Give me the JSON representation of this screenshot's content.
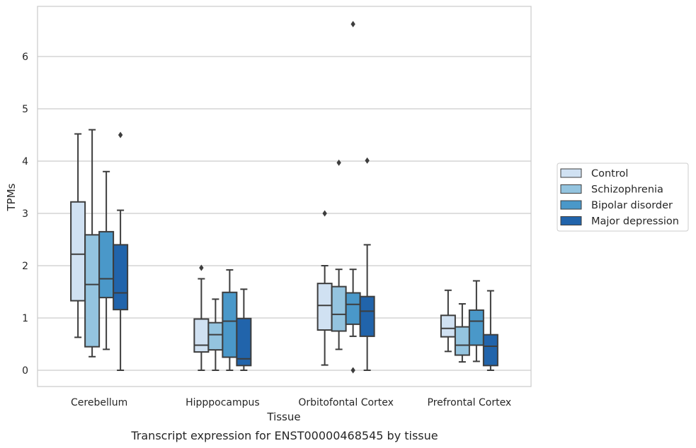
{
  "caption": "Transcript expression for ENST00000468545 by tissue",
  "chart_data": {
    "type": "box",
    "title": "",
    "xlabel": "Tissue",
    "ylabel": "TPMs",
    "ylim": [
      -0.32,
      7.0
    ],
    "yticks": [
      0,
      1,
      2,
      3,
      4,
      5,
      6
    ],
    "grid": true,
    "legend_position": "right",
    "categories": [
      "Cerebellum",
      "Hipppocampus",
      "Orbitofontal Cortex",
      "Prefrontal Cortex"
    ],
    "series": [
      {
        "name": "Control",
        "color": "#d0e1f2",
        "boxes": [
          {
            "whisker_low": 0.63,
            "q1": 1.33,
            "median": 2.22,
            "q3": 3.22,
            "whisker_high": 4.52,
            "outliers": []
          },
          {
            "whisker_low": 0.0,
            "q1": 0.35,
            "median": 0.48,
            "q3": 0.98,
            "whisker_high": 1.75,
            "outliers": [
              1.96
            ]
          },
          {
            "whisker_low": 0.1,
            "q1": 0.77,
            "median": 1.24,
            "q3": 1.66,
            "whisker_high": 2.0,
            "outliers": [
              3.0
            ]
          },
          {
            "whisker_low": 0.36,
            "q1": 0.64,
            "median": 0.8,
            "q3": 1.05,
            "whisker_high": 1.53,
            "outliers": []
          }
        ]
      },
      {
        "name": "Schizophrenia",
        "color": "#94c4df",
        "boxes": [
          {
            "whisker_low": 0.26,
            "q1": 0.45,
            "median": 1.64,
            "q3": 2.59,
            "whisker_high": 4.6,
            "outliers": []
          },
          {
            "whisker_low": 0.0,
            "q1": 0.39,
            "median": 0.68,
            "q3": 0.91,
            "whisker_high": 1.36,
            "outliers": []
          },
          {
            "whisker_low": 0.4,
            "q1": 0.75,
            "median": 1.07,
            "q3": 1.6,
            "whisker_high": 1.93,
            "outliers": [
              3.97
            ]
          },
          {
            "whisker_low": 0.16,
            "q1": 0.29,
            "median": 0.48,
            "q3": 0.83,
            "whisker_high": 1.27,
            "outliers": []
          }
        ]
      },
      {
        "name": "Bipolar disorder",
        "color": "#4a98c9",
        "boxes": [
          {
            "whisker_low": 0.4,
            "q1": 1.39,
            "median": 1.75,
            "q3": 2.65,
            "whisker_high": 3.8,
            "outliers": []
          },
          {
            "whisker_low": 0.0,
            "q1": 0.25,
            "median": 0.94,
            "q3": 1.49,
            "whisker_high": 1.92,
            "outliers": []
          },
          {
            "whisker_low": 0.65,
            "q1": 0.88,
            "median": 1.26,
            "q3": 1.48,
            "whisker_high": 1.93,
            "outliers": [
              0.0,
              6.62
            ]
          },
          {
            "whisker_low": 0.17,
            "q1": 0.48,
            "median": 0.94,
            "q3": 1.15,
            "whisker_high": 1.71,
            "outliers": []
          }
        ]
      },
      {
        "name": "Major depression",
        "color": "#2164ab",
        "boxes": [
          {
            "whisker_low": 0.0,
            "q1": 1.16,
            "median": 1.48,
            "q3": 2.4,
            "whisker_high": 3.06,
            "outliers": [
              4.5
            ]
          },
          {
            "whisker_low": 0.0,
            "q1": 0.09,
            "median": 0.22,
            "q3": 0.99,
            "whisker_high": 1.55,
            "outliers": []
          },
          {
            "whisker_low": 0.0,
            "q1": 0.65,
            "median": 1.13,
            "q3": 1.41,
            "whisker_high": 2.4,
            "outliers": [
              4.01
            ]
          },
          {
            "whisker_low": 0.0,
            "q1": 0.09,
            "median": 0.46,
            "q3": 0.68,
            "whisker_high": 1.52,
            "outliers": []
          }
        ]
      }
    ]
  }
}
